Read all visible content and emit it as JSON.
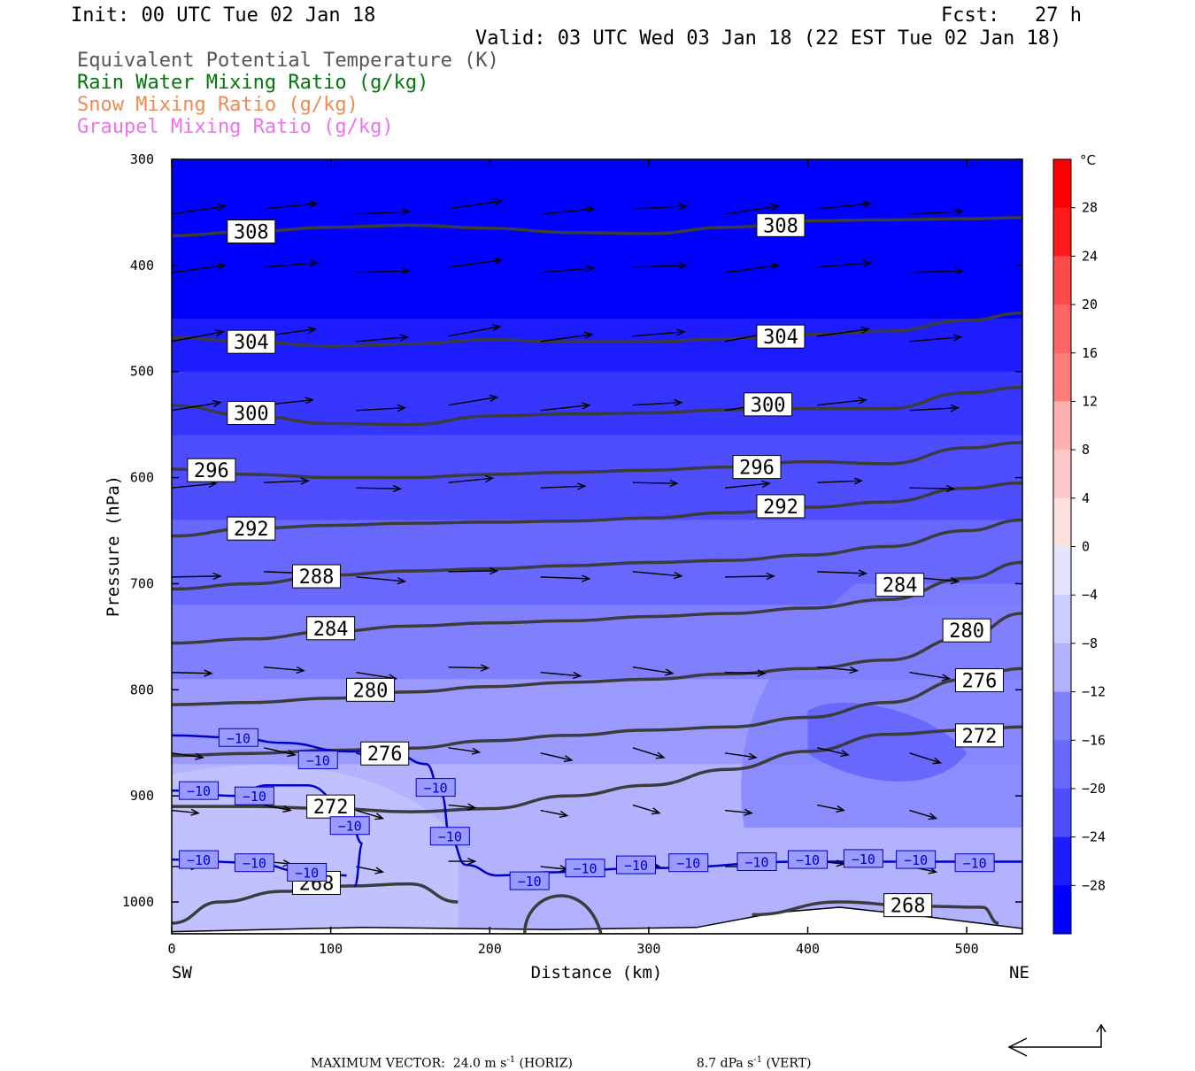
{
  "header": {
    "init": "Init: 00 UTC Tue 02 Jan 18",
    "fcst": "Fcst:   27 h",
    "valid": "Valid: 03 UTC Wed 03 Jan 18 (22 EST Tue 02 Jan 18)"
  },
  "legend_lines": [
    {
      "text": "Equivalent Potential Temperature (K)",
      "color": "#555555"
    },
    {
      "text": "Rain Water Mixing Ratio (g/kg)",
      "color": "#00780a"
    },
    {
      "text": "Snow Mixing Ratio (g/kg)",
      "color": "#ee8a52"
    },
    {
      "text": "Graupel Mixing Ratio (g/kg)",
      "color": "#ee72ee"
    }
  ],
  "footer": {
    "max_vector": "MAXIMUM VECTOR:  24.0 m s",
    "horiz": " (HORIZ)",
    "vert_val": "8.7 dPa s",
    "vert": " (VERT)",
    "exp": "-1"
  },
  "chart_data": {
    "type": "heatmap",
    "xlabel": "Distance (km)",
    "ylabel": "Pressure (hPa)",
    "xlim": [
      0,
      535
    ],
    "ylim": [
      1030,
      300
    ],
    "x_ticks": [
      0,
      100,
      200,
      300,
      400,
      500
    ],
    "y_ticks": [
      300,
      400,
      500,
      600,
      700,
      800,
      900,
      1000
    ],
    "left_label": "SW",
    "right_label": "NE",
    "colorbar": {
      "unit": "°C",
      "labels": [
        "28",
        "24",
        "20",
        "16",
        "12",
        "8",
        "4",
        "0",
        "−4",
        "−8",
        "−12",
        "−16",
        "−20",
        "−24",
        "−28"
      ],
      "colors": [
        "#ff0000",
        "#ff1a1a",
        "#ff3232",
        "#ff4a4a",
        "#ff6464",
        "#ff7c7c",
        "#ff9696",
        "#ffb0b0",
        "#ffc8c8",
        "#ffe0e0",
        "#ffffff",
        "#e4e4ff",
        "#ccccff",
        "#b2b2ff",
        "#9a9aff",
        "#8080ff",
        "#6868ff",
        "#4e4eff",
        "#3636ff",
        "#1c1cff",
        "#0000ff"
      ]
    },
    "theta_e_contours": [
      {
        "value": "308",
        "x": [
          0,
          50,
          100,
          150,
          200,
          250,
          300,
          350,
          400,
          450,
          500,
          535
        ],
        "p": [
          372,
          368,
          364,
          362,
          365,
          369,
          370,
          364,
          358,
          357,
          356,
          355
        ]
      },
      {
        "value": "304",
        "x": [
          0,
          50,
          100,
          150,
          200,
          250,
          300,
          350,
          400,
          450,
          500,
          535
        ],
        "p": [
          468,
          472,
          476,
          474,
          470,
          472,
          472,
          469,
          465,
          462,
          452,
          445
        ]
      },
      {
        "value": "300",
        "x": [
          0,
          50,
          100,
          150,
          200,
          250,
          300,
          350,
          400,
          450,
          500,
          535
        ],
        "p": [
          532,
          542,
          549,
          550,
          542,
          540,
          539,
          536,
          535,
          535,
          520,
          515
        ]
      },
      {
        "value": "296",
        "x": [
          0,
          50,
          100,
          150,
          200,
          250,
          300,
          350,
          400,
          450,
          500,
          535
        ],
        "p": [
          592,
          597,
          600,
          600,
          597,
          595,
          593,
          590,
          585,
          587,
          572,
          567
        ]
      },
      {
        "value": "292",
        "x": [
          0,
          50,
          100,
          150,
          200,
          250,
          300,
          350,
          400,
          450,
          500,
          535
        ],
        "p": [
          655,
          648,
          645,
          643,
          642,
          641,
          638,
          633,
          628,
          623,
          610,
          605
        ]
      },
      {
        "value": "288",
        "x": [
          0,
          50,
          100,
          150,
          200,
          250,
          300,
          350,
          400,
          450,
          500,
          535
        ],
        "p": [
          705,
          700,
          692,
          688,
          686,
          683,
          680,
          678,
          673,
          665,
          650,
          640
        ]
      },
      {
        "value": "284",
        "x": [
          0,
          50,
          100,
          150,
          200,
          250,
          300,
          350,
          400,
          450,
          500,
          535
        ],
        "p": [
          756,
          752,
          745,
          740,
          737,
          735,
          731,
          728,
          723,
          715,
          695,
          680
        ]
      },
      {
        "value": "280",
        "x": [
          0,
          50,
          100,
          150,
          200,
          250,
          300,
          350,
          400,
          450,
          500,
          535
        ],
        "p": [
          814,
          812,
          808,
          802,
          797,
          793,
          790,
          785,
          780,
          772,
          750,
          728
        ]
      },
      {
        "value": "276",
        "x": [
          0,
          50,
          100,
          150,
          200,
          250,
          300,
          350,
          400,
          450,
          500,
          535
        ],
        "p": [
          862,
          860,
          857,
          855,
          848,
          843,
          838,
          835,
          826,
          812,
          790,
          780
        ]
      },
      {
        "value": "272",
        "x": [
          0,
          50,
          100,
          150,
          200,
          250,
          300,
          350,
          400,
          450,
          500,
          535
        ],
        "p": [
          910,
          910,
          912,
          915,
          912,
          900,
          890,
          875,
          858,
          842,
          838,
          835
        ]
      },
      {
        "value": "268",
        "x": [
          0,
          30,
          70,
          110,
          150,
          180
        ],
        "p": [
          1020,
          1000,
          990,
          985,
          983,
          1000
        ]
      }
    ],
    "theta_e_labels": [
      {
        "text": "308",
        "x": 50,
        "p": 368
      },
      {
        "text": "308",
        "x": 383,
        "p": 362
      },
      {
        "text": "304",
        "x": 50,
        "p": 472
      },
      {
        "text": "304",
        "x": 383,
        "p": 467
      },
      {
        "text": "300",
        "x": 50,
        "p": 539
      },
      {
        "text": "300",
        "x": 375,
        "p": 531
      },
      {
        "text": "296",
        "x": 25,
        "p": 593
      },
      {
        "text": "296",
        "x": 368,
        "p": 590
      },
      {
        "text": "292",
        "x": 50,
        "p": 648
      },
      {
        "text": "292",
        "x": 383,
        "p": 627
      },
      {
        "text": "288",
        "x": 91,
        "p": 693
      },
      {
        "text": "284",
        "x": 100,
        "p": 742
      },
      {
        "text": "284",
        "x": 458,
        "p": 701
      },
      {
        "text": "280",
        "x": 125,
        "p": 800
      },
      {
        "text": "280",
        "x": 500,
        "p": 744
      },
      {
        "text": "276",
        "x": 134,
        "p": 860
      },
      {
        "text": "276",
        "x": 508,
        "p": 791
      },
      {
        "text": "272",
        "x": 100,
        "p": 910
      },
      {
        "text": "272",
        "x": 508,
        "p": 843
      },
      {
        "text": "268",
        "x": 91,
        "p": 982
      },
      {
        "text": "268",
        "x": 463,
        "p": 1003
      }
    ],
    "temp_contour_minus10": {
      "value": "−10",
      "labels": [
        {
          "x": 42,
          "p": 845
        },
        {
          "x": 92,
          "p": 866
        },
        {
          "x": 166,
          "p": 892
        },
        {
          "x": 175,
          "p": 938
        },
        {
          "x": 112,
          "p": 928
        },
        {
          "x": 52,
          "p": 900
        },
        {
          "x": 17,
          "p": 895
        },
        {
          "x": 17,
          "p": 960
        },
        {
          "x": 52,
          "p": 963
        },
        {
          "x": 85,
          "p": 972
        },
        {
          "x": 225,
          "p": 980
        },
        {
          "x": 260,
          "p": 968
        },
        {
          "x": 292,
          "p": 965
        },
        {
          "x": 325,
          "p": 963
        },
        {
          "x": 368,
          "p": 962
        },
        {
          "x": 400,
          "p": 960
        },
        {
          "x": 435,
          "p": 959
        },
        {
          "x": 468,
          "p": 960
        },
        {
          "x": 505,
          "p": 963
        }
      ]
    },
    "max_vector_horiz": 24.0,
    "max_vector_vert": 8.7
  }
}
